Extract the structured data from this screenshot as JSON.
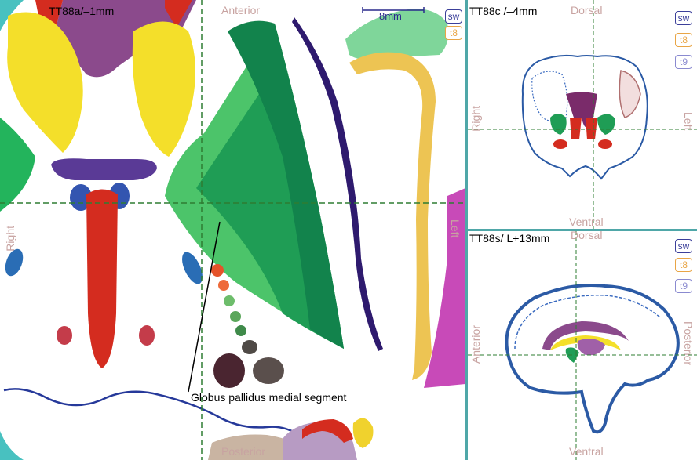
{
  "panels": {
    "axial": {
      "title": "TT88a/–1mm",
      "orientation": {
        "top": "Anterior",
        "bottom": "Posterior",
        "left": "Right",
        "right": "Left"
      },
      "scale_label": "8mm",
      "structure_label": "Globus pallidus medial segment",
      "atlas_buttons": [
        "sw",
        "t8"
      ]
    },
    "coronal": {
      "title": "TT88c /–4mm",
      "orientation": {
        "top": "Dorsal",
        "bottom": "Ventral",
        "left": "Right",
        "right": "Left"
      },
      "atlas_buttons": [
        "sw",
        "t8",
        "t9"
      ]
    },
    "sagittal": {
      "title": "TT88s/ L+13mm",
      "orientation": {
        "top": "Dorsal",
        "bottom": "Ventral",
        "left": "Anterior",
        "right": "Posterior"
      },
      "atlas_buttons": [
        "sw",
        "t8",
        "t9"
      ]
    }
  },
  "colors": {
    "crosshair": "#2e7d32",
    "divider": "#4fa7a8",
    "orientation_text": "#c8a3a1"
  }
}
